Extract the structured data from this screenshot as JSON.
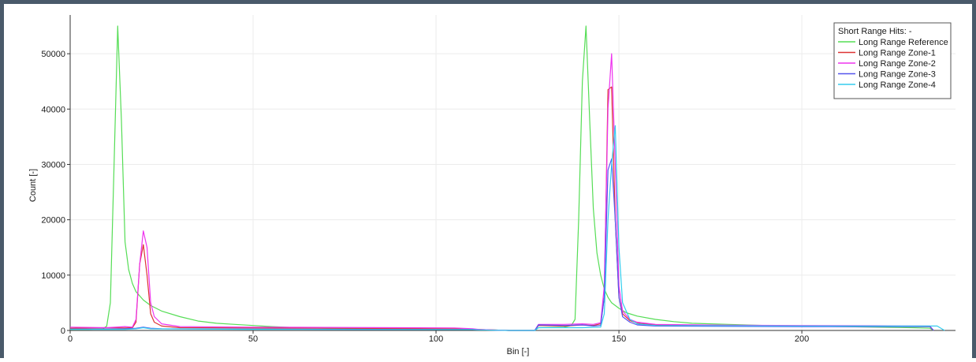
{
  "chart_data": {
    "type": "line",
    "title": "",
    "xlabel": "Bin [-]",
    "ylabel": "Count [-]",
    "xlim": [
      0,
      242
    ],
    "ylim": [
      0,
      57000
    ],
    "x_ticks": [
      0,
      50,
      100,
      150,
      200
    ],
    "y_ticks": [
      0,
      10000,
      20000,
      30000,
      40000,
      50000
    ],
    "x_tick_labels": [
      "0",
      "50",
      "100",
      "150",
      "200"
    ],
    "y_tick_labels": [
      "0",
      "10000",
      "20000",
      "30000",
      "40000",
      "50000"
    ],
    "grid": true,
    "legend_position": "top-right",
    "legend_title": "Short Range Hits: -",
    "series": [
      {
        "name": "Long Range Reference",
        "color": "#55dd55",
        "points": [
          [
            0,
            200
          ],
          [
            5,
            200
          ],
          [
            9,
            300
          ],
          [
            10,
            800
          ],
          [
            11,
            5000
          ],
          [
            12,
            30000
          ],
          [
            13,
            55000
          ],
          [
            14,
            38000
          ],
          [
            15,
            16000
          ],
          [
            16,
            11000
          ],
          [
            17,
            8500
          ],
          [
            18,
            7000
          ],
          [
            20,
            5500
          ],
          [
            22,
            4500
          ],
          [
            25,
            3500
          ],
          [
            30,
            2500
          ],
          [
            35,
            1700
          ],
          [
            40,
            1300
          ],
          [
            45,
            1100
          ],
          [
            50,
            900
          ],
          [
            55,
            700
          ],
          [
            60,
            550
          ],
          [
            70,
            400
          ],
          [
            80,
            350
          ],
          [
            90,
            300
          ],
          [
            100,
            250
          ],
          [
            110,
            200
          ],
          [
            112,
            150
          ],
          [
            120,
            0
          ],
          [
            127,
            0
          ],
          [
            128,
            500
          ],
          [
            135,
            600
          ],
          [
            137,
            900
          ],
          [
            138,
            2000
          ],
          [
            139,
            20000
          ],
          [
            140,
            45000
          ],
          [
            141,
            55000
          ],
          [
            142,
            38000
          ],
          [
            143,
            22000
          ],
          [
            144,
            14000
          ],
          [
            145,
            10000
          ],
          [
            146,
            7500
          ],
          [
            147,
            6000
          ],
          [
            148,
            5000
          ],
          [
            150,
            4000
          ],
          [
            152,
            3200
          ],
          [
            155,
            2600
          ],
          [
            160,
            2000
          ],
          [
            165,
            1600
          ],
          [
            170,
            1300
          ],
          [
            180,
            1100
          ],
          [
            190,
            900
          ],
          [
            200,
            800
          ],
          [
            220,
            600
          ],
          [
            230,
            500
          ],
          [
            235,
            400
          ],
          [
            236,
            0
          ]
        ]
      },
      {
        "name": "Long Range Zone-1",
        "color": "#dd3333",
        "points": [
          [
            0,
            400
          ],
          [
            10,
            500
          ],
          [
            15,
            450
          ],
          [
            17,
            500
          ],
          [
            18,
            1500
          ],
          [
            19,
            12000
          ],
          [
            20,
            15500
          ],
          [
            21,
            10000
          ],
          [
            22,
            3000
          ],
          [
            23,
            1500
          ],
          [
            25,
            800
          ],
          [
            30,
            500
          ],
          [
            50,
            450
          ],
          [
            70,
            400
          ],
          [
            90,
            350
          ],
          [
            105,
            300
          ],
          [
            110,
            200
          ],
          [
            112,
            150
          ],
          [
            120,
            0
          ],
          [
            127,
            0
          ],
          [
            128,
            900
          ],
          [
            135,
            800
          ],
          [
            140,
            1000
          ],
          [
            143,
            900
          ],
          [
            145,
            1200
          ],
          [
            146,
            6000
          ],
          [
            147,
            43500
          ],
          [
            148,
            44000
          ],
          [
            149,
            20000
          ],
          [
            150,
            6000
          ],
          [
            151,
            3000
          ],
          [
            153,
            1800
          ],
          [
            155,
            1300
          ],
          [
            160,
            1000
          ],
          [
            180,
            850
          ],
          [
            200,
            800
          ],
          [
            220,
            750
          ],
          [
            235,
            700
          ],
          [
            236,
            0
          ]
        ]
      },
      {
        "name": "Long Range Zone-2",
        "color": "#ee33ee",
        "points": [
          [
            0,
            600
          ],
          [
            10,
            500
          ],
          [
            15,
            700
          ],
          [
            17,
            600
          ],
          [
            18,
            2000
          ],
          [
            19,
            12000
          ],
          [
            20,
            18000
          ],
          [
            21,
            15000
          ],
          [
            22,
            5000
          ],
          [
            23,
            2500
          ],
          [
            25,
            1200
          ],
          [
            30,
            700
          ],
          [
            50,
            600
          ],
          [
            70,
            550
          ],
          [
            90,
            500
          ],
          [
            105,
            450
          ],
          [
            110,
            300
          ],
          [
            112,
            150
          ],
          [
            120,
            0
          ],
          [
            127,
            0
          ],
          [
            128,
            1100
          ],
          [
            135,
            1100
          ],
          [
            140,
            1200
          ],
          [
            143,
            1100
          ],
          [
            145,
            1400
          ],
          [
            146,
            8000
          ],
          [
            147,
            40000
          ],
          [
            148,
            50000
          ],
          [
            149,
            30000
          ],
          [
            150,
            8000
          ],
          [
            151,
            3500
          ],
          [
            153,
            2000
          ],
          [
            155,
            1500
          ],
          [
            160,
            1100
          ],
          [
            180,
            950
          ],
          [
            200,
            900
          ],
          [
            220,
            850
          ],
          [
            235,
            800
          ],
          [
            236,
            0
          ]
        ]
      },
      {
        "name": "Long Range Zone-3",
        "color": "#5555ee",
        "points": [
          [
            0,
            250
          ],
          [
            10,
            250
          ],
          [
            15,
            300
          ],
          [
            18,
            400
          ],
          [
            20,
            600
          ],
          [
            22,
            400
          ],
          [
            25,
            300
          ],
          [
            50,
            250
          ],
          [
            80,
            200
          ],
          [
            110,
            150
          ],
          [
            112,
            100
          ],
          [
            120,
            0
          ],
          [
            127,
            0
          ],
          [
            128,
            1000
          ],
          [
            135,
            900
          ],
          [
            140,
            1000
          ],
          [
            143,
            800
          ],
          [
            145,
            900
          ],
          [
            146,
            6000
          ],
          [
            147,
            29000
          ],
          [
            148,
            31000
          ],
          [
            149,
            20000
          ],
          [
            150,
            6000
          ],
          [
            151,
            2500
          ],
          [
            153,
            1500
          ],
          [
            155,
            1000
          ],
          [
            160,
            800
          ],
          [
            200,
            700
          ],
          [
            235,
            700
          ],
          [
            236,
            0
          ]
        ]
      },
      {
        "name": "Long Range Zone-4",
        "color": "#33ccee",
        "points": [
          [
            0,
            200
          ],
          [
            15,
            200
          ],
          [
            18,
            300
          ],
          [
            20,
            500
          ],
          [
            22,
            300
          ],
          [
            50,
            200
          ],
          [
            110,
            150
          ],
          [
            112,
            100
          ],
          [
            120,
            0
          ],
          [
            127,
            0
          ],
          [
            128,
            500
          ],
          [
            140,
            500
          ],
          [
            145,
            600
          ],
          [
            146,
            3000
          ],
          [
            147,
            20000
          ],
          [
            148,
            30000
          ],
          [
            149,
            37000
          ],
          [
            150,
            15000
          ],
          [
            151,
            5000
          ],
          [
            153,
            2000
          ],
          [
            155,
            1200
          ],
          [
            160,
            900
          ],
          [
            200,
            800
          ],
          [
            230,
            800
          ],
          [
            237,
            800
          ],
          [
            239,
            0
          ]
        ]
      }
    ]
  }
}
